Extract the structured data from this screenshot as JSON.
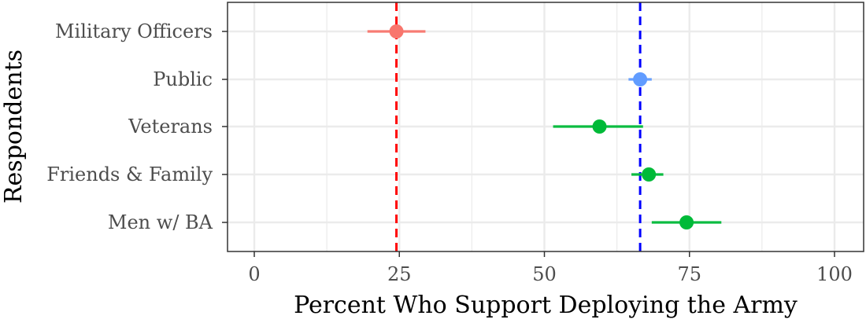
{
  "chart_data": {
    "type": "scatter",
    "xlabel": "Percent Who Support Deploying the Army",
    "ylabel": "Respondents",
    "xlim": [
      -10,
      105
    ],
    "x_ticks": [
      0,
      25,
      50,
      75,
      100
    ],
    "x_tick_labels": [
      "0",
      "25",
      "50",
      "75",
      "100"
    ],
    "grid": true,
    "legend": "none",
    "categories": [
      "Military Officers",
      "Public",
      "Veterans",
      "Friends & Family",
      "Men w/ BA"
    ],
    "points": [
      {
        "category": "Military Officers",
        "value": 24.5,
        "low": 19.5,
        "high": 29.5,
        "color": "#f8766d"
      },
      {
        "category": "Public",
        "value": 66.5,
        "low": 64.5,
        "high": 68.5,
        "color": "#619cff"
      },
      {
        "category": "Veterans",
        "value": 59.5,
        "low": 51.5,
        "high": 67.0,
        "color": "#00ba38"
      },
      {
        "category": "Friends & Family",
        "value": 68.0,
        "low": 65.0,
        "high": 70.5,
        "color": "#00ba38"
      },
      {
        "category": "Men w/ BA",
        "value": 74.5,
        "low": 68.5,
        "high": 80.5,
        "color": "#00ba38"
      }
    ],
    "reference_lines": [
      {
        "x": 24.5,
        "color": "#ff0000",
        "style": "dashed"
      },
      {
        "x": 66.5,
        "color": "#0000ff",
        "style": "dashed"
      }
    ]
  }
}
